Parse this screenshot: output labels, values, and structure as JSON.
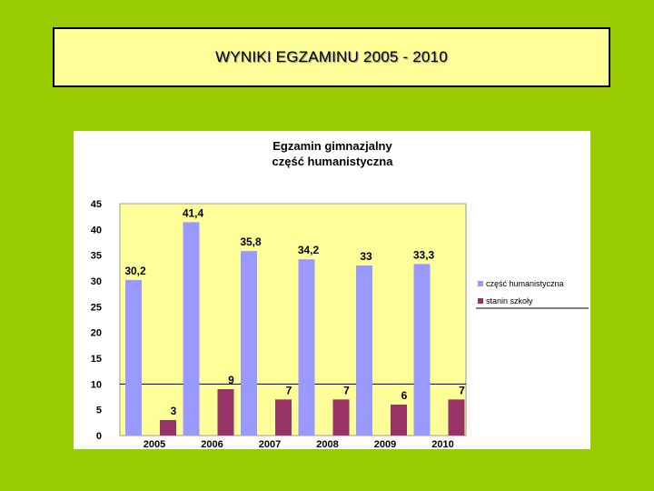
{
  "slide": {
    "title": "WYNIKI EGZAMINU  2005 - 2010"
  },
  "colors": {
    "background": "#99cc00",
    "title_box": "#ffff99",
    "plot_area": "#ffff99",
    "series1": "#9999ff",
    "series2": "#993366"
  },
  "chart_data": {
    "type": "bar",
    "title": "Egzamin gimnazjalny",
    "subtitle": "część humanistyczna",
    "categories": [
      "2005",
      "2006",
      "2007",
      "2008",
      "2009",
      "2010"
    ],
    "series": [
      {
        "name": "część humanistyczna",
        "values": [
          30.2,
          41.4,
          35.8,
          34.2,
          33,
          33.3
        ],
        "labels": [
          "30,2",
          "41,4",
          "35,8",
          "34,2",
          "33",
          "33,3"
        ]
      },
      {
        "name": "stanin szkoły",
        "values": [
          3,
          9,
          7,
          7,
          6,
          7
        ],
        "labels": [
          "3",
          "9",
          "7",
          "7",
          "6",
          "7"
        ]
      }
    ],
    "ylim": [
      0,
      45
    ],
    "yticks": [
      "0",
      "5",
      "10",
      "15",
      "20",
      "25",
      "30",
      "35",
      "40",
      "45"
    ],
    "xlabel": "",
    "ylabel": "",
    "legend": "right"
  }
}
